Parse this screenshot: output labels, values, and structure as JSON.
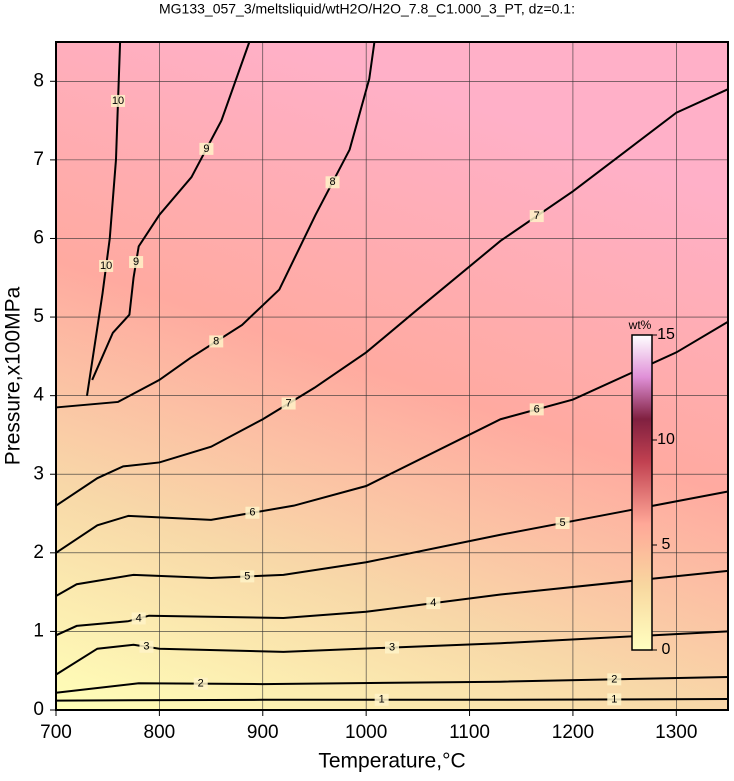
{
  "chart_data": {
    "type": "contour",
    "title": "MG133_057_3/meltsliquid/wtH2O/H2O_7.8_C1.000_3_PT, dz=0.1:",
    "xlabel": "Temperature,°C",
    "ylabel": "Pressure,x100MPa",
    "xlim": [
      700,
      1350
    ],
    "ylim": [
      0,
      8.5
    ],
    "xticks": [
      700,
      800,
      900,
      1000,
      1100,
      1200,
      1300
    ],
    "yticks": [
      0,
      1,
      2,
      3,
      4,
      5,
      6,
      7,
      8
    ],
    "grid": true,
    "color": "#000000",
    "series": [
      {
        "name": "1",
        "x": [
          700,
          900,
          1130,
          1350
        ],
        "values": [
          0.12,
          0.13,
          0.13,
          0.14
        ]
      },
      {
        "name": "2",
        "x": [
          700,
          780,
          900,
          1130,
          1350
        ],
        "values": [
          0.22,
          0.34,
          0.33,
          0.36,
          0.42
        ]
      },
      {
        "name": "3",
        "x": [
          700,
          740,
          775,
          800,
          920,
          1130,
          1350
        ],
        "values": [
          0.45,
          0.78,
          0.83,
          0.78,
          0.74,
          0.85,
          1.0
        ]
      },
      {
        "name": "4",
        "x": [
          700,
          720,
          770,
          790,
          920,
          1000,
          1130,
          1350
        ],
        "values": [
          0.95,
          1.07,
          1.13,
          1.2,
          1.17,
          1.25,
          1.47,
          1.77
        ]
      },
      {
        "name": "5",
        "x": [
          700,
          720,
          775,
          850,
          920,
          1000,
          1130,
          1250,
          1350
        ],
        "values": [
          1.45,
          1.6,
          1.72,
          1.68,
          1.72,
          1.88,
          2.23,
          2.53,
          2.78
        ]
      },
      {
        "name": "6",
        "x": [
          700,
          740,
          770,
          850,
          930,
          1000,
          1130,
          1200,
          1300,
          1350
        ],
        "values": [
          2.0,
          2.35,
          2.47,
          2.42,
          2.6,
          2.85,
          3.7,
          3.95,
          4.55,
          4.94
        ]
      },
      {
        "name": "7",
        "x": [
          700,
          740,
          765,
          800,
          850,
          900,
          950,
          1000,
          1050,
          1130,
          1200,
          1250,
          1300,
          1350
        ],
        "values": [
          2.6,
          2.95,
          3.1,
          3.15,
          3.35,
          3.7,
          4.1,
          4.55,
          5.1,
          5.97,
          6.6,
          7.1,
          7.6,
          7.9
        ]
      },
      {
        "name": "8",
        "x": [
          700,
          760,
          800,
          830,
          880,
          916,
          951,
          984,
          1003,
          1008
        ],
        "values": [
          3.85,
          3.92,
          4.2,
          4.48,
          4.9,
          5.35,
          6.3,
          7.13,
          8.03,
          8.5
        ]
      },
      {
        "name": "9",
        "x": [
          735,
          755,
          771,
          775,
          780,
          800,
          831,
          860,
          887
        ],
        "values": [
          4.2,
          4.8,
          5.03,
          5.5,
          5.9,
          6.3,
          6.78,
          7.5,
          8.5
        ]
      },
      {
        "name": "10",
        "x": [
          730,
          745,
          752,
          758,
          762
        ],
        "values": [
          4.0,
          5.3,
          6.0,
          7.0,
          8.5
        ]
      }
    ],
    "colorbar": {
      "label": "wt%",
      "lim": [
        0,
        15
      ],
      "ticks": [
        0,
        5,
        10,
        15
      ],
      "stops": [
        {
          "value": 0,
          "color": "#ffffc0"
        },
        {
          "value": 3,
          "color": "#f8d8a0"
        },
        {
          "value": 6,
          "color": "#ffa898"
        },
        {
          "value": 9,
          "color": "#c04050"
        },
        {
          "value": 11,
          "color": "#802040"
        },
        {
          "value": 13,
          "color": "#e090d8"
        },
        {
          "value": 15,
          "color": "#ffffff"
        }
      ]
    }
  }
}
